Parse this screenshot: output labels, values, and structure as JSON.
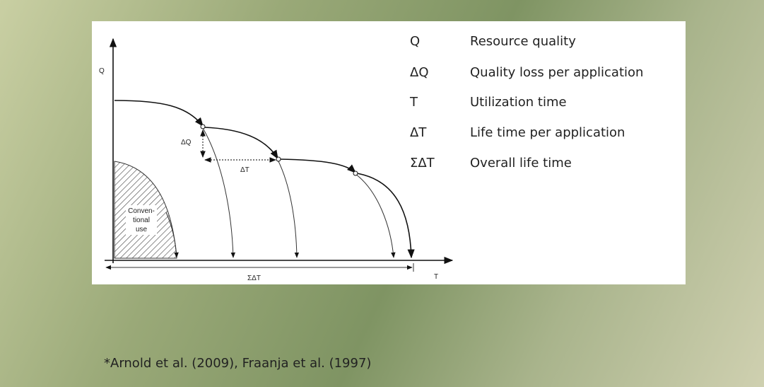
{
  "diagram": {
    "axis_y": "Q",
    "axis_x": "T",
    "delta_q": "ΔQ",
    "delta_t": "ΔT",
    "sum_delta_t": "ΣΔT",
    "conventional": [
      "Conven-",
      "tional",
      "use"
    ]
  },
  "legend": [
    {
      "symbol": "Q",
      "text": "Resource quality"
    },
    {
      "symbol": "ΔQ",
      "text": "Quality loss per application"
    },
    {
      "symbol": "T",
      "text": "Utilization time"
    },
    {
      "symbol": "ΔT",
      "text": "Life time per application"
    },
    {
      "symbol": "ΣΔT",
      "text": "Overall life time"
    }
  ],
  "citation": "*Arnold et al. (2009), Fraanja et al. (1997)"
}
